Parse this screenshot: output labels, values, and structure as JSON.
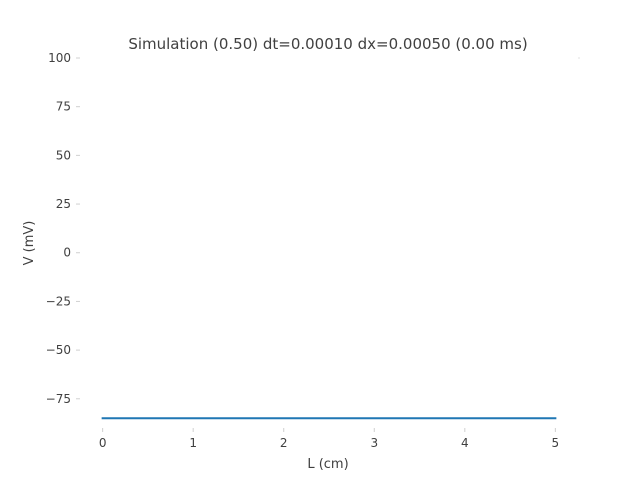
{
  "chart_data": {
    "type": "line",
    "title": "Simulation (0.50) dt=0.00010 dx=0.00050 (0.00 ms)",
    "xlabel": "L (cm)",
    "ylabel": "V (mV)",
    "xlim": [
      -0.25,
      5.25
    ],
    "ylim": [
      -90,
      100
    ],
    "x_ticks": [
      0,
      1,
      2,
      3,
      4,
      5
    ],
    "x_tick_labels": [
      "0",
      "1",
      "2",
      "3",
      "4",
      "5"
    ],
    "y_ticks": [
      100,
      75,
      50,
      25,
      0,
      -25,
      -50,
      -75
    ],
    "y_tick_labels": [
      "100",
      "75",
      "50",
      "25",
      "0",
      "−25",
      "−50",
      "−75"
    ],
    "grid": false,
    "series": [
      {
        "name": "V",
        "color": "#1f77b4",
        "x": [
          0,
          5
        ],
        "y": [
          -85,
          -85
        ]
      }
    ]
  }
}
